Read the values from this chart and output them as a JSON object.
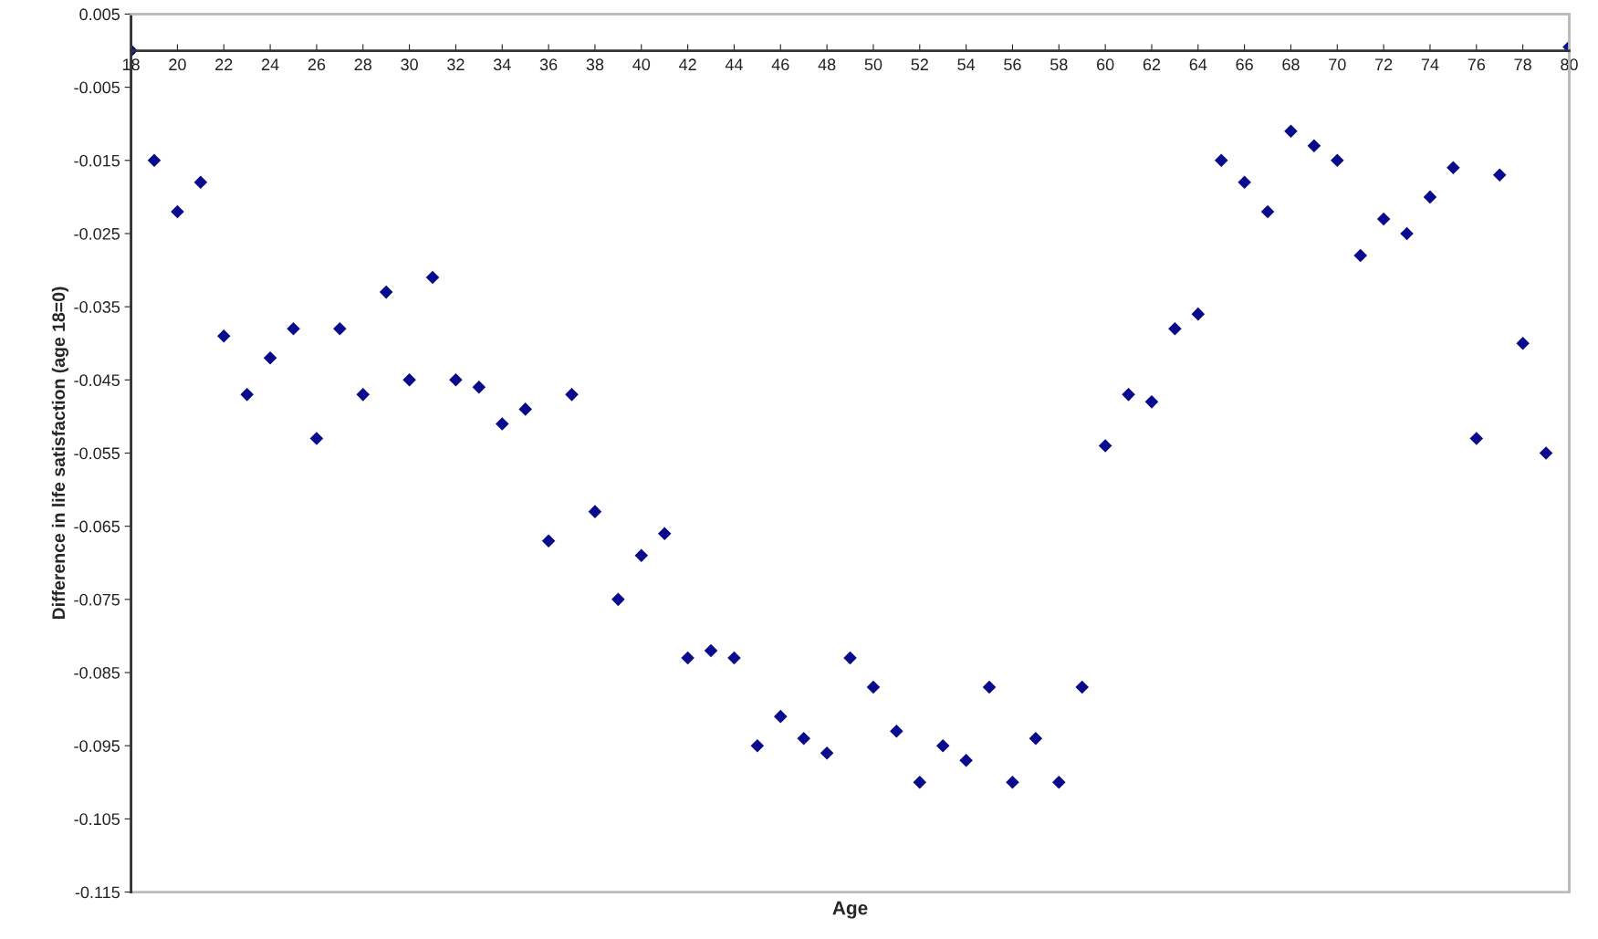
{
  "chart_data": {
    "type": "scatter",
    "xlabel": "Age",
    "ylabel": "Difference in life satisfaction (age 18=0)",
    "x": [
      18,
      19,
      20,
      21,
      22,
      23,
      24,
      25,
      26,
      27,
      28,
      29,
      30,
      31,
      32,
      33,
      34,
      35,
      36,
      37,
      38,
      39,
      40,
      41,
      42,
      43,
      44,
      45,
      46,
      47,
      48,
      49,
      50,
      51,
      52,
      53,
      54,
      55,
      56,
      57,
      58,
      59,
      60,
      61,
      62,
      63,
      64,
      65,
      66,
      67,
      68,
      69,
      70,
      71,
      72,
      73,
      74,
      75,
      76,
      77,
      78,
      79,
      80
    ],
    "series": [
      {
        "color": "#0a0a8c",
        "values": [
          0,
          -0.015,
          -0.022,
          -0.018,
          -0.039,
          -0.047,
          -0.042,
          -0.038,
          -0.053,
          -0.038,
          -0.047,
          -0.033,
          -0.045,
          -0.031,
          -0.045,
          -0.046,
          -0.051,
          -0.049,
          -0.067,
          -0.047,
          -0.063,
          -0.075,
          -0.069,
          -0.066,
          -0.083,
          -0.082,
          -0.083,
          -0.095,
          -0.091,
          -0.094,
          -0.096,
          -0.083,
          -0.087,
          -0.093,
          -0.1,
          -0.095,
          -0.097,
          -0.087,
          -0.1,
          -0.094,
          -0.1,
          -0.087,
          -0.054,
          -0.047,
          -0.048,
          -0.038,
          -0.036,
          -0.015,
          -0.018,
          -0.022,
          -0.011,
          -0.013,
          -0.015,
          -0.028,
          -0.023,
          -0.025,
          -0.02,
          -0.016,
          -0.053,
          -0.017,
          -0.04,
          -0.055,
          0.0005
        ]
      }
    ],
    "marker": "diamond",
    "grid": false,
    "legend": false,
    "xlim": [
      18,
      80
    ],
    "xticks": [
      18,
      20,
      22,
      24,
      26,
      28,
      30,
      32,
      34,
      36,
      38,
      40,
      42,
      44,
      46,
      48,
      50,
      52,
      54,
      56,
      58,
      60,
      62,
      64,
      66,
      68,
      70,
      72,
      74,
      76,
      78,
      80
    ],
    "ylim": [
      -0.115,
      0.005
    ],
    "yticks": [
      0.005,
      -0.005,
      -0.015,
      -0.025,
      -0.035,
      -0.045,
      -0.055,
      -0.065,
      -0.075,
      -0.085,
      -0.095,
      -0.105,
      -0.115
    ]
  }
}
